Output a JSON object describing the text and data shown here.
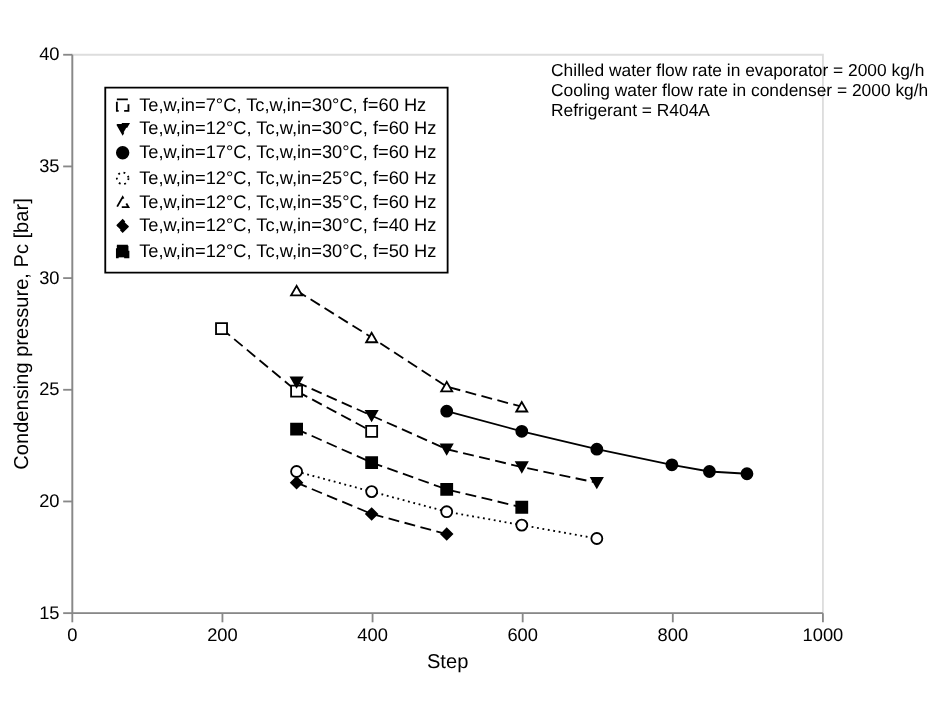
{
  "chart_data": {
    "type": "line",
    "xlabel": "Step",
    "ylabel": "Condensing pressure, Pc [bar]",
    "xlim": [
      0,
      1000
    ],
    "xticks": [
      0,
      200,
      400,
      600,
      800,
      1000
    ],
    "ylim": [
      15,
      40
    ],
    "yticks": [
      15,
      20,
      25,
      30,
      35,
      40
    ],
    "grid": false,
    "legend": "top left",
    "annotations": [
      "Chilled water flow rate in evaporator = 2000 kg/h",
      "Cooling water flow rate in condenser = 2000 kg/h",
      "Refrigerant = R404A"
    ],
    "series": [
      {
        "name": "Te,w,in=7°C, Tc,w,in=30°C, f=60 Hz",
        "color": "#000000",
        "marker": "square-open",
        "line_style": "dashed",
        "x": [
          200,
          300,
          400
        ],
        "values": [
          27.7,
          24.9,
          23.1
        ]
      },
      {
        "name": "Te,w,in=12°C, Tc,w,in=30°C, f=60 Hz",
        "color": "#000000",
        "marker": "triangle-down",
        "line_style": "dashed",
        "x": [
          300,
          400,
          500,
          600,
          700
        ],
        "values": [
          25.3,
          23.8,
          22.3,
          21.5,
          20.8
        ]
      },
      {
        "name": "Te,w,in=17°C, Tc,w,in=30°C, f=60 Hz",
        "color": "#000000",
        "marker": "circle",
        "line_style": "solid",
        "x": [
          500,
          600,
          700,
          800,
          850,
          900
        ],
        "values": [
          24.0,
          23.1,
          22.3,
          21.6,
          21.3,
          21.2
        ]
      },
      {
        "name": "Te,w,in=12°C, Tc,w,in=25°C, f=60 Hz",
        "color": "#000000",
        "marker": "circle-open",
        "line_style": "dotted",
        "x": [
          300,
          400,
          500,
          600,
          700
        ],
        "values": [
          21.3,
          20.4,
          19.5,
          18.9,
          18.3
        ]
      },
      {
        "name": "Te,w,in=12°C, Tc,w,in=35°C, f=60 Hz",
        "color": "#000000",
        "marker": "triangle-open",
        "line_style": "dashed",
        "x": [
          300,
          400,
          500,
          600
        ],
        "values": [
          29.4,
          27.3,
          25.1,
          24.2
        ]
      },
      {
        "name": "Te,w,in=12°C, Tc,w,in=30°C, f=40 Hz",
        "color": "#000000",
        "marker": "diamond",
        "line_style": "dashed",
        "x": [
          300,
          400,
          500
        ],
        "values": [
          20.8,
          19.4,
          18.5
        ]
      },
      {
        "name": "Te,w,in=12°C, Tc,w,in=30°C, f=50 Hz",
        "color": "#000000",
        "marker": "square",
        "line_style": "dashed",
        "x": [
          300,
          400,
          500,
          600
        ],
        "values": [
          23.2,
          21.7,
          20.5,
          19.7
        ]
      }
    ]
  }
}
